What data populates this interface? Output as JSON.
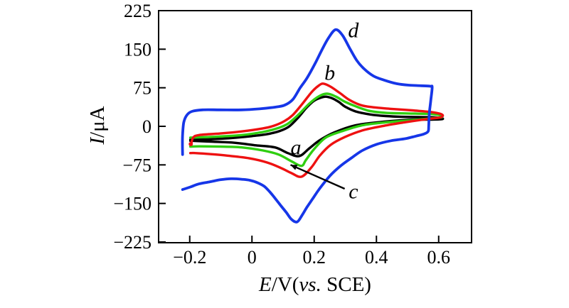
{
  "figure": {
    "background": "#ffffff",
    "frame_color": "#000000"
  },
  "chart_data": {
    "type": "line",
    "kind": "cyclic-voltammogram",
    "title": "",
    "xlabel_segments": [
      {
        "text": "E",
        "italic": true
      },
      {
        "text": "/V(",
        "italic": false
      },
      {
        "text": "vs.",
        "italic": true
      },
      {
        "text": " SCE)",
        "italic": false
      }
    ],
    "ylabel_segments": [
      {
        "text": "I",
        "italic": true
      },
      {
        "text": "/μA",
        "italic": false
      }
    ],
    "xlim": [
      -0.3,
      0.7057
    ],
    "ylim": [
      -226.4,
      225
    ],
    "x_ticks": [
      -0.2,
      0,
      0.2,
      0.4,
      0.6
    ],
    "x_tick_labels": [
      "−0.2",
      "0",
      "0.2",
      "0.4",
      "0.6"
    ],
    "y_ticks": [
      225,
      150,
      75,
      0,
      -75,
      -150,
      -225
    ],
    "y_tick_labels": [
      "225",
      "150",
      "75",
      "0",
      "−75",
      "−150",
      "−225"
    ],
    "grid": false,
    "legend_position": "none",
    "series": [
      {
        "name": "a",
        "color": "#000000",
        "width": 3.4,
        "points": [
          [
            -0.198,
            -26
          ],
          [
            -0.15,
            -25.5
          ],
          [
            -0.1,
            -24
          ],
          [
            -0.05,
            -22
          ],
          [
            0.0,
            -19
          ],
          [
            0.05,
            -15
          ],
          [
            0.09,
            -9
          ],
          [
            0.12,
            0
          ],
          [
            0.15,
            18
          ],
          [
            0.175,
            36
          ],
          [
            0.2,
            50
          ],
          [
            0.225,
            56.5
          ],
          [
            0.24,
            57.5
          ],
          [
            0.26,
            54
          ],
          [
            0.28,
            47
          ],
          [
            0.3,
            38
          ],
          [
            0.333,
            29
          ],
          [
            0.38,
            23
          ],
          [
            0.43,
            20
          ],
          [
            0.48,
            18.5
          ],
          [
            0.54,
            18
          ],
          [
            0.585,
            17.5
          ],
          [
            0.607,
            16
          ],
          [
            0.61,
            14
          ],
          [
            0.56,
            13
          ],
          [
            0.515,
            13
          ],
          [
            0.424,
            9
          ],
          [
            0.333,
            2
          ],
          [
            0.264,
            -12
          ],
          [
            0.218,
            -27
          ],
          [
            0.184,
            -43
          ],
          [
            0.152,
            -58
          ],
          [
            0.115,
            -52
          ],
          [
            0.074,
            -41
          ],
          [
            0.013,
            -37
          ],
          [
            -0.056,
            -32
          ],
          [
            -0.125,
            -30
          ],
          [
            -0.198,
            -28
          ]
        ]
      },
      {
        "name": "c",
        "color": "#2fce10",
        "width": 3.4,
        "points": [
          [
            -0.198,
            -22
          ],
          [
            -0.125,
            -20.5
          ],
          [
            -0.033,
            -17
          ],
          [
            0.035,
            -11
          ],
          [
            0.081,
            -4
          ],
          [
            0.115,
            5
          ],
          [
            0.15,
            23
          ],
          [
            0.184,
            44
          ],
          [
            0.214,
            58
          ],
          [
            0.241,
            63.5
          ],
          [
            0.269,
            58
          ],
          [
            0.298,
            48
          ],
          [
            0.333,
            39
          ],
          [
            0.378,
            30
          ],
          [
            0.435,
            26
          ],
          [
            0.504,
            25
          ],
          [
            0.573,
            24
          ],
          [
            0.602,
            22
          ],
          [
            0.609,
            19
          ],
          [
            0.602,
            17
          ],
          [
            0.515,
            12
          ],
          [
            0.435,
            8
          ],
          [
            0.355,
            2
          ],
          [
            0.287,
            -10
          ],
          [
            0.237,
            -22
          ],
          [
            0.2,
            -44
          ],
          [
            0.173,
            -66
          ],
          [
            0.159,
            -77
          ],
          [
            0.127,
            -68
          ],
          [
            0.086,
            -55
          ],
          [
            0.035,
            -47
          ],
          [
            -0.033,
            -41
          ],
          [
            -0.102,
            -39.5
          ],
          [
            -0.17,
            -39
          ],
          [
            -0.198,
            -39.5
          ]
        ]
      },
      {
        "name": "b",
        "color": "#ee1111",
        "width": 3.4,
        "points": [
          [
            -0.195,
            -34
          ],
          [
            -0.189,
            -22
          ],
          [
            -0.17,
            -17
          ],
          [
            -0.102,
            -14
          ],
          [
            -0.033,
            -10
          ],
          [
            0.035,
            -4
          ],
          [
            0.07,
            1
          ],
          [
            0.104,
            10
          ],
          [
            0.131,
            22
          ],
          [
            0.161,
            43
          ],
          [
            0.191,
            66
          ],
          [
            0.214,
            79
          ],
          [
            0.23,
            83
          ],
          [
            0.253,
            77
          ],
          [
            0.282,
            65
          ],
          [
            0.314,
            51
          ],
          [
            0.351,
            41
          ],
          [
            0.39,
            37
          ],
          [
            0.447,
            34
          ],
          [
            0.515,
            31
          ],
          [
            0.573,
            28
          ],
          [
            0.607,
            24
          ],
          [
            0.613,
            20
          ],
          [
            0.602,
            17
          ],
          [
            0.561,
            14
          ],
          [
            0.493,
            8
          ],
          [
            0.424,
            1
          ],
          [
            0.355,
            -8
          ],
          [
            0.298,
            -21
          ],
          [
            0.253,
            -36
          ],
          [
            0.218,
            -57
          ],
          [
            0.191,
            -80
          ],
          [
            0.159,
            -98
          ],
          [
            0.127,
            -91
          ],
          [
            0.093,
            -81
          ],
          [
            0.047,
            -70
          ],
          [
            -0.01,
            -62
          ],
          [
            -0.079,
            -57
          ],
          [
            -0.136,
            -54
          ],
          [
            -0.182,
            -52
          ],
          [
            -0.198,
            -52
          ]
        ]
      },
      {
        "name": "d",
        "color": "#1636e8",
        "width": 3.8,
        "points": [
          [
            -0.223,
            -55
          ],
          [
            -0.2235,
            -37
          ],
          [
            -0.223,
            -17
          ],
          [
            -0.219,
            8
          ],
          [
            -0.209,
            22
          ],
          [
            -0.193,
            29
          ],
          [
            -0.159,
            32
          ],
          [
            -0.102,
            32
          ],
          [
            -0.033,
            32
          ],
          [
            0.024,
            34
          ],
          [
            0.07,
            37
          ],
          [
            0.104,
            41
          ],
          [
            0.131,
            52
          ],
          [
            0.154,
            74
          ],
          [
            0.177,
            94
          ],
          [
            0.202,
            121
          ],
          [
            0.225,
            149
          ],
          [
            0.246,
            172
          ],
          [
            0.269,
            188
          ],
          [
            0.291,
            177
          ],
          [
            0.314,
            152
          ],
          [
            0.337,
            128
          ],
          [
            0.36,
            112
          ],
          [
            0.39,
            98
          ],
          [
            0.424,
            90
          ],
          [
            0.465,
            83
          ],
          [
            0.504,
            80
          ],
          [
            0.543,
            79
          ],
          [
            0.573,
            78
          ],
          [
            0.579,
            76
          ],
          [
            0.575,
            52
          ],
          [
            0.57,
            25
          ],
          [
            0.568,
            1
          ],
          [
            0.566,
            -10
          ],
          [
            0.552,
            -15
          ],
          [
            0.527,
            -19
          ],
          [
            0.493,
            -24
          ],
          [
            0.447,
            -28
          ],
          [
            0.401,
            -35
          ],
          [
            0.355,
            -47
          ],
          [
            0.321,
            -61
          ],
          [
            0.287,
            -76
          ],
          [
            0.259,
            -91
          ],
          [
            0.237,
            -106
          ],
          [
            0.214,
            -124
          ],
          [
            0.195,
            -141
          ],
          [
            0.177,
            -157
          ],
          [
            0.161,
            -173
          ],
          [
            0.145,
            -186
          ],
          [
            0.127,
            -181
          ],
          [
            0.111,
            -168
          ],
          [
            0.095,
            -156
          ],
          [
            0.077,
            -142
          ],
          [
            0.058,
            -128
          ],
          [
            0.04,
            -117
          ],
          [
            0.019,
            -110
          ],
          [
            -0.006,
            -105
          ],
          [
            -0.033,
            -103
          ],
          [
            -0.067,
            -102
          ],
          [
            -0.102,
            -104
          ],
          [
            -0.136,
            -108
          ],
          [
            -0.17,
            -112
          ],
          [
            -0.198,
            -118
          ],
          [
            -0.223,
            -123
          ]
        ]
      }
    ],
    "markers": [
      {
        "type": "dot",
        "color": "#ee1111",
        "x": -0.1966,
        "y": -34.5,
        "r": 3
      }
    ],
    "curve_labels": [
      {
        "text": "a",
        "x": 0.141,
        "y": -41.5
      },
      {
        "text": "b",
        "x": 0.25,
        "y": 103.5
      },
      {
        "text": "c",
        "x": 0.326,
        "y": -127
      },
      {
        "text": "d",
        "x": 0.326,
        "y": 186.5
      }
    ],
    "annotation_arrow": {
      "from": [
        0.298,
        -121.5
      ],
      "to": [
        0.124,
        -75
      ],
      "color": "#000000"
    }
  }
}
